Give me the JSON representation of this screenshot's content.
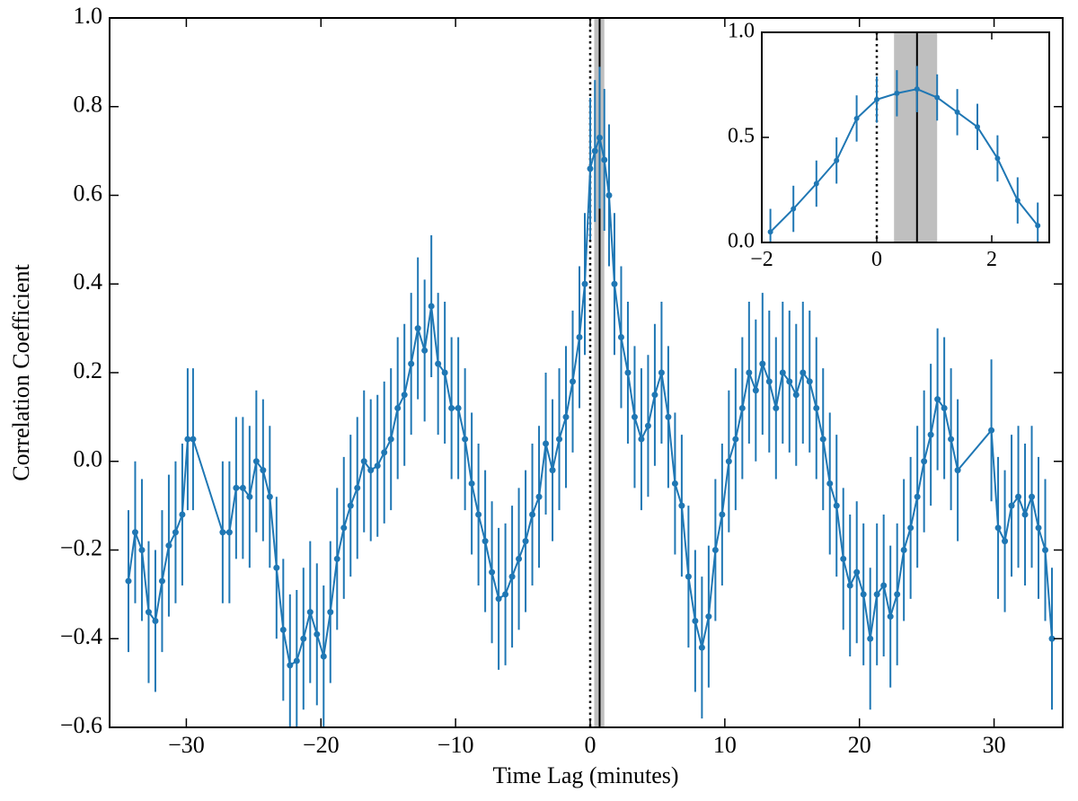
{
  "chart_data": [
    {
      "type": "errorbar-line",
      "xlabel": "Time Lag (minutes)",
      "ylabel": "Correlation Coefficient",
      "color": "#1f77b4",
      "x": [
        -34.3,
        -33.8,
        -33.3,
        -32.8,
        -32.3,
        -31.8,
        -31.3,
        -30.8,
        -30.3,
        -29.9,
        -29.5,
        -27.3,
        -26.8,
        -26.3,
        -25.8,
        -25.3,
        -24.8,
        -24.3,
        -23.8,
        -23.3,
        -22.8,
        -22.3,
        -21.8,
        -21.3,
        -20.8,
        -20.3,
        -19.8,
        -19.3,
        -18.8,
        -18.3,
        -17.8,
        -17.3,
        -16.8,
        -16.3,
        -15.8,
        -15.3,
        -14.8,
        -14.3,
        -13.8,
        -13.3,
        -12.8,
        -12.3,
        -11.8,
        -11.3,
        -10.8,
        -10.3,
        -9.8,
        -9.3,
        -8.8,
        -8.3,
        -7.8,
        -7.3,
        -6.8,
        -6.3,
        -5.8,
        -5.3,
        -4.8,
        -4.3,
        -3.8,
        -3.3,
        -2.8,
        -2.3,
        -1.8,
        -1.3,
        -0.8,
        -0.4,
        0.0,
        0.35,
        0.7,
        1.05,
        1.4,
        1.8,
        2.3,
        2.8,
        3.3,
        3.8,
        4.3,
        4.8,
        5.3,
        5.8,
        6.3,
        6.8,
        7.3,
        7.8,
        8.3,
        8.8,
        9.3,
        9.8,
        10.3,
        10.8,
        11.3,
        11.8,
        12.3,
        12.8,
        13.3,
        13.8,
        14.3,
        14.8,
        15.3,
        15.8,
        16.3,
        16.8,
        17.3,
        17.8,
        18.3,
        18.8,
        19.3,
        19.8,
        20.3,
        20.8,
        21.3,
        21.8,
        22.3,
        22.8,
        23.3,
        23.8,
        24.3,
        24.8,
        25.3,
        25.8,
        26.3,
        26.8,
        27.3,
        29.8,
        30.3,
        30.8,
        31.3,
        31.8,
        32.3,
        32.8,
        33.3,
        33.8,
        34.3
      ],
      "values": [
        -0.27,
        -0.16,
        -0.2,
        -0.34,
        -0.36,
        -0.27,
        -0.19,
        -0.16,
        -0.12,
        0.05,
        0.05,
        -0.16,
        -0.16,
        -0.06,
        -0.06,
        -0.08,
        0.0,
        -0.02,
        -0.08,
        -0.24,
        -0.38,
        -0.46,
        -0.45,
        -0.4,
        -0.34,
        -0.39,
        -0.44,
        -0.34,
        -0.22,
        -0.15,
        -0.1,
        -0.06,
        0.0,
        -0.02,
        -0.01,
        0.02,
        0.05,
        0.12,
        0.15,
        0.22,
        0.3,
        0.25,
        0.35,
        0.22,
        0.2,
        0.12,
        0.12,
        0.05,
        -0.05,
        -0.12,
        -0.18,
        -0.25,
        -0.31,
        -0.3,
        -0.26,
        -0.22,
        -0.18,
        -0.12,
        -0.08,
        0.04,
        -0.02,
        0.05,
        0.1,
        0.18,
        0.28,
        0.4,
        0.66,
        0.7,
        0.73,
        0.68,
        0.6,
        0.4,
        0.28,
        0.2,
        0.1,
        0.05,
        0.08,
        0.15,
        0.2,
        0.1,
        -0.05,
        -0.1,
        -0.26,
        -0.36,
        -0.42,
        -0.35,
        -0.2,
        -0.12,
        0.0,
        0.05,
        0.12,
        0.2,
        0.16,
        0.22,
        0.18,
        0.12,
        0.2,
        0.18,
        0.15,
        0.2,
        0.18,
        0.12,
        0.05,
        -0.05,
        -0.1,
        -0.22,
        -0.28,
        -0.25,
        -0.3,
        -0.4,
        -0.3,
        -0.28,
        -0.35,
        -0.3,
        -0.2,
        -0.15,
        -0.08,
        0.0,
        0.06,
        0.14,
        0.12,
        0.05,
        -0.02,
        0.07,
        -0.15,
        -0.18,
        -0.1,
        -0.08,
        -0.12,
        -0.08,
        -0.15,
        -0.2,
        -0.4
      ],
      "yerr": 0.16,
      "zero_lag": 0,
      "peak_lag": 0.7,
      "peak_lag_range": [
        0.3,
        1.05
      ],
      "xlim": [
        -35.7,
        35.1
      ],
      "ylim": [
        -0.6,
        1.0
      ],
      "xticks": [
        {
          "value": -30,
          "label": "−30"
        },
        {
          "value": -20,
          "label": "−20"
        },
        {
          "value": -10,
          "label": "−10"
        },
        0,
        10,
        20,
        30
      ],
      "yticks": [
        {
          "value": -0.6,
          "label": "−0.6"
        },
        {
          "value": -0.4,
          "label": "−0.4"
        },
        {
          "value": -0.2,
          "label": "−0.2"
        },
        {
          "value": 0,
          "label": "0.0"
        },
        0.2,
        0.4,
        0.6,
        0.8,
        {
          "value": 1,
          "label": "1.0"
        }
      ]
    },
    {
      "type": "errorbar-line",
      "color": "#1f77b4",
      "x": [
        -1.85,
        -1.45,
        -1.05,
        -0.7,
        -0.35,
        0.0,
        0.35,
        0.7,
        1.05,
        1.4,
        1.75,
        2.1,
        2.45,
        2.8
      ],
      "values": [
        0.05,
        0.16,
        0.28,
        0.39,
        0.59,
        0.68,
        0.71,
        0.73,
        0.69,
        0.62,
        0.55,
        0.4,
        0.2,
        0.08
      ],
      "yerr": 0.11,
      "zero_lag": 0,
      "peak_lag": 0.7,
      "peak_lag_range": [
        0.3,
        1.05
      ],
      "xlim": [
        -2,
        3
      ],
      "ylim": [
        0,
        1
      ],
      "xticks": [
        {
          "value": -2,
          "label": "−2"
        },
        0,
        2
      ],
      "yticks": [
        {
          "value": 0,
          "label": "0.0"
        },
        0.5,
        {
          "value": 1,
          "label": "1.0"
        }
      ]
    }
  ]
}
